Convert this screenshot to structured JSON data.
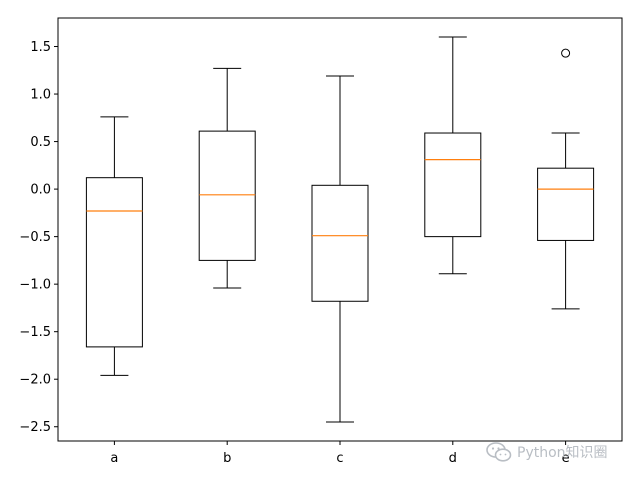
{
  "chart_data": {
    "type": "boxplot",
    "title": "",
    "xlabel": "",
    "ylabel": "",
    "categories": [
      "a",
      "b",
      "c",
      "d",
      "e"
    ],
    "ylim": [
      -2.65,
      1.8
    ],
    "yticks": [
      -2.5,
      -2.0,
      -1.5,
      -1.0,
      -0.5,
      0.0,
      0.5,
      1.0,
      1.5
    ],
    "ytick_labels": [
      "−2.5",
      "−2.0",
      "−1.5",
      "−1.0",
      "−0.5",
      "0.0",
      "0.5",
      "1.0",
      "1.5"
    ],
    "grid": false,
    "boxes": [
      {
        "category": "a",
        "whisker_low": -1.96,
        "q1": -1.66,
        "median": -0.23,
        "q3": 0.12,
        "whisker_high": 0.76,
        "outliers": []
      },
      {
        "category": "b",
        "whisker_low": -1.04,
        "q1": -0.75,
        "median": -0.06,
        "q3": 0.61,
        "whisker_high": 1.27,
        "outliers": []
      },
      {
        "category": "c",
        "whisker_low": -2.45,
        "q1": -1.18,
        "median": -0.49,
        "q3": 0.04,
        "whisker_high": 1.19,
        "outliers": []
      },
      {
        "category": "d",
        "whisker_low": -0.89,
        "q1": -0.5,
        "median": 0.31,
        "q3": 0.59,
        "whisker_high": 1.6,
        "outliers": []
      },
      {
        "category": "e",
        "whisker_low": -1.26,
        "q1": -0.54,
        "median": 0.0,
        "q3": 0.22,
        "whisker_high": 0.59,
        "outliers": [
          1.43
        ]
      }
    ],
    "colors": {
      "box": "#000000",
      "median": "#ff7f0e",
      "outlier": "#000000"
    }
  },
  "watermark": {
    "text": "Python知识圈",
    "icon": "wechat-icon"
  }
}
